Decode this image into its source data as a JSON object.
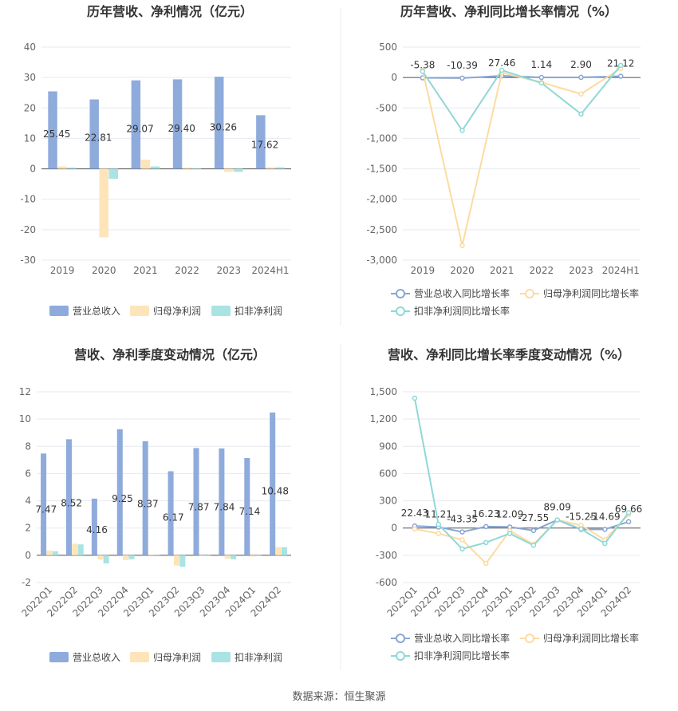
{
  "source_text": "数据来源：恒生聚源",
  "colors": {
    "revenue": "#8eabdc",
    "net_profit": "#fde4b9",
    "deducted_profit": "#a9e3e4",
    "revenue_line": "#8aa6d4",
    "net_profit_line": "#fddba0",
    "deducted_line": "#8fd8d8",
    "grid": "#e6e9f0",
    "axis_text": "#666666"
  },
  "chart_data": [
    {
      "id": "annual-amount",
      "type": "bar",
      "title": "历年营收、净利情况（亿元）",
      "categories": [
        "2019",
        "2020",
        "2021",
        "2022",
        "2023",
        "2024H1"
      ],
      "y_ticks": [
        "40",
        "30",
        "20",
        "10",
        "0",
        "-10",
        "-20",
        "-30"
      ],
      "ylim": [
        -30,
        40
      ],
      "grid": true,
      "legend_position": "bottom",
      "series": [
        {
          "name": "营业总收入",
          "values": [
            25.45,
            22.81,
            29.07,
            29.4,
            30.26,
            17.62
          ],
          "labels": [
            "25.45",
            "22.81",
            "29.07",
            "29.40",
            "30.26",
            "17.62"
          ]
        },
        {
          "name": "归母净利润",
          "values": [
            0.8,
            -22.5,
            3.0,
            0.4,
            -1.0,
            0.5
          ]
        },
        {
          "name": "扣非净利润",
          "values": [
            0.4,
            -3.3,
            0.8,
            0.2,
            -1.0,
            0.5
          ]
        }
      ]
    },
    {
      "id": "annual-growth",
      "type": "line",
      "title": "历年营收、净利同比增长率情况（%）",
      "categories": [
        "2019",
        "2020",
        "2021",
        "2022",
        "2023",
        "2024H1"
      ],
      "y_ticks": [
        "500",
        "0",
        "-500",
        "-1,000",
        "-1,500",
        "-2,000",
        "-2,500",
        "-3,000"
      ],
      "ylim": [
        -3000,
        500
      ],
      "grid": true,
      "legend_position": "bottom",
      "series": [
        {
          "name": "营业总收入同比增长率",
          "values": [
            -5.38,
            -10.39,
            27.46,
            1.14,
            2.9,
            21.12
          ],
          "labels": [
            "-5.38",
            "-10.39",
            "27.46",
            "1.14",
            "2.90",
            "21.12"
          ]
        },
        {
          "name": "归母净利润同比增长率",
          "values": [
            120,
            -2760,
            80,
            -80,
            -270,
            150
          ]
        },
        {
          "name": "扣非净利润同比增长率",
          "values": [
            100,
            -870,
            120,
            -90,
            -600,
            200
          ]
        }
      ]
    },
    {
      "id": "quarterly-amount",
      "type": "bar",
      "title": "营收、净利季度变动情况（亿元）",
      "categories": [
        "2022Q1",
        "2022Q2",
        "2022Q3",
        "2022Q4",
        "2023Q1",
        "2023Q2",
        "2023Q3",
        "2023Q4",
        "2024Q1",
        "2024Q2"
      ],
      "y_ticks": [
        "12",
        "10",
        "8",
        "6",
        "4",
        "2",
        "0",
        "-2"
      ],
      "ylim": [
        -2,
        12
      ],
      "grid": true,
      "legend_position": "bottom",
      "series": [
        {
          "name": "营业总收入",
          "values": [
            7.47,
            8.52,
            4.16,
            9.25,
            8.37,
            6.17,
            7.87,
            7.84,
            7.14,
            10.48
          ],
          "labels": [
            "7.47",
            "8.52",
            "4.16",
            "9.25",
            "8.37",
            "6.17",
            "7.87",
            "7.84",
            "7.14",
            "10.48"
          ]
        },
        {
          "name": "归母净利润",
          "values": [
            0.35,
            0.85,
            -0.3,
            -0.35,
            0.05,
            -0.75,
            0.0,
            -0.25,
            -0.1,
            0.6
          ]
        },
        {
          "name": "扣非净利润",
          "values": [
            0.3,
            0.8,
            -0.6,
            -0.3,
            0.05,
            -0.85,
            0.0,
            -0.3,
            -0.05,
            0.6
          ]
        }
      ]
    },
    {
      "id": "quarterly-growth",
      "type": "line",
      "title": "营收、净利同比增长率季度变动情况（%）",
      "categories": [
        "2022Q1",
        "2022Q2",
        "2022Q3",
        "2022Q4",
        "2023Q1",
        "2023Q2",
        "2023Q3",
        "2023Q4",
        "2024Q1",
        "2024Q2"
      ],
      "y_ticks": [
        "1,500",
        "1,200",
        "900",
        "600",
        "300",
        "0",
        "-300",
        "-600"
      ],
      "ylim": [
        -600,
        1500
      ],
      "grid": true,
      "legend_position": "bottom",
      "series": [
        {
          "name": "营业总收入同比增长率",
          "values": [
            22.43,
            11.21,
            -43.35,
            16.23,
            12.09,
            -27.55,
            89.09,
            -15.25,
            -14.69,
            69.66
          ],
          "labels": [
            "22.43",
            "11.21",
            "-43.35",
            "16.23",
            "12.09",
            "-27.55",
            "89.09",
            "-15.25",
            "-14.69",
            "69.66"
          ]
        },
        {
          "name": "归母净利润同比增长率",
          "values": [
            -10,
            -60,
            -130,
            -390,
            -30,
            -180,
            90,
            30,
            -130,
            150
          ]
        },
        {
          "name": "扣非净利润同比增长率",
          "values": [
            1430,
            40,
            -230,
            -160,
            -60,
            -190,
            90,
            -10,
            -170,
            170
          ]
        }
      ]
    }
  ]
}
